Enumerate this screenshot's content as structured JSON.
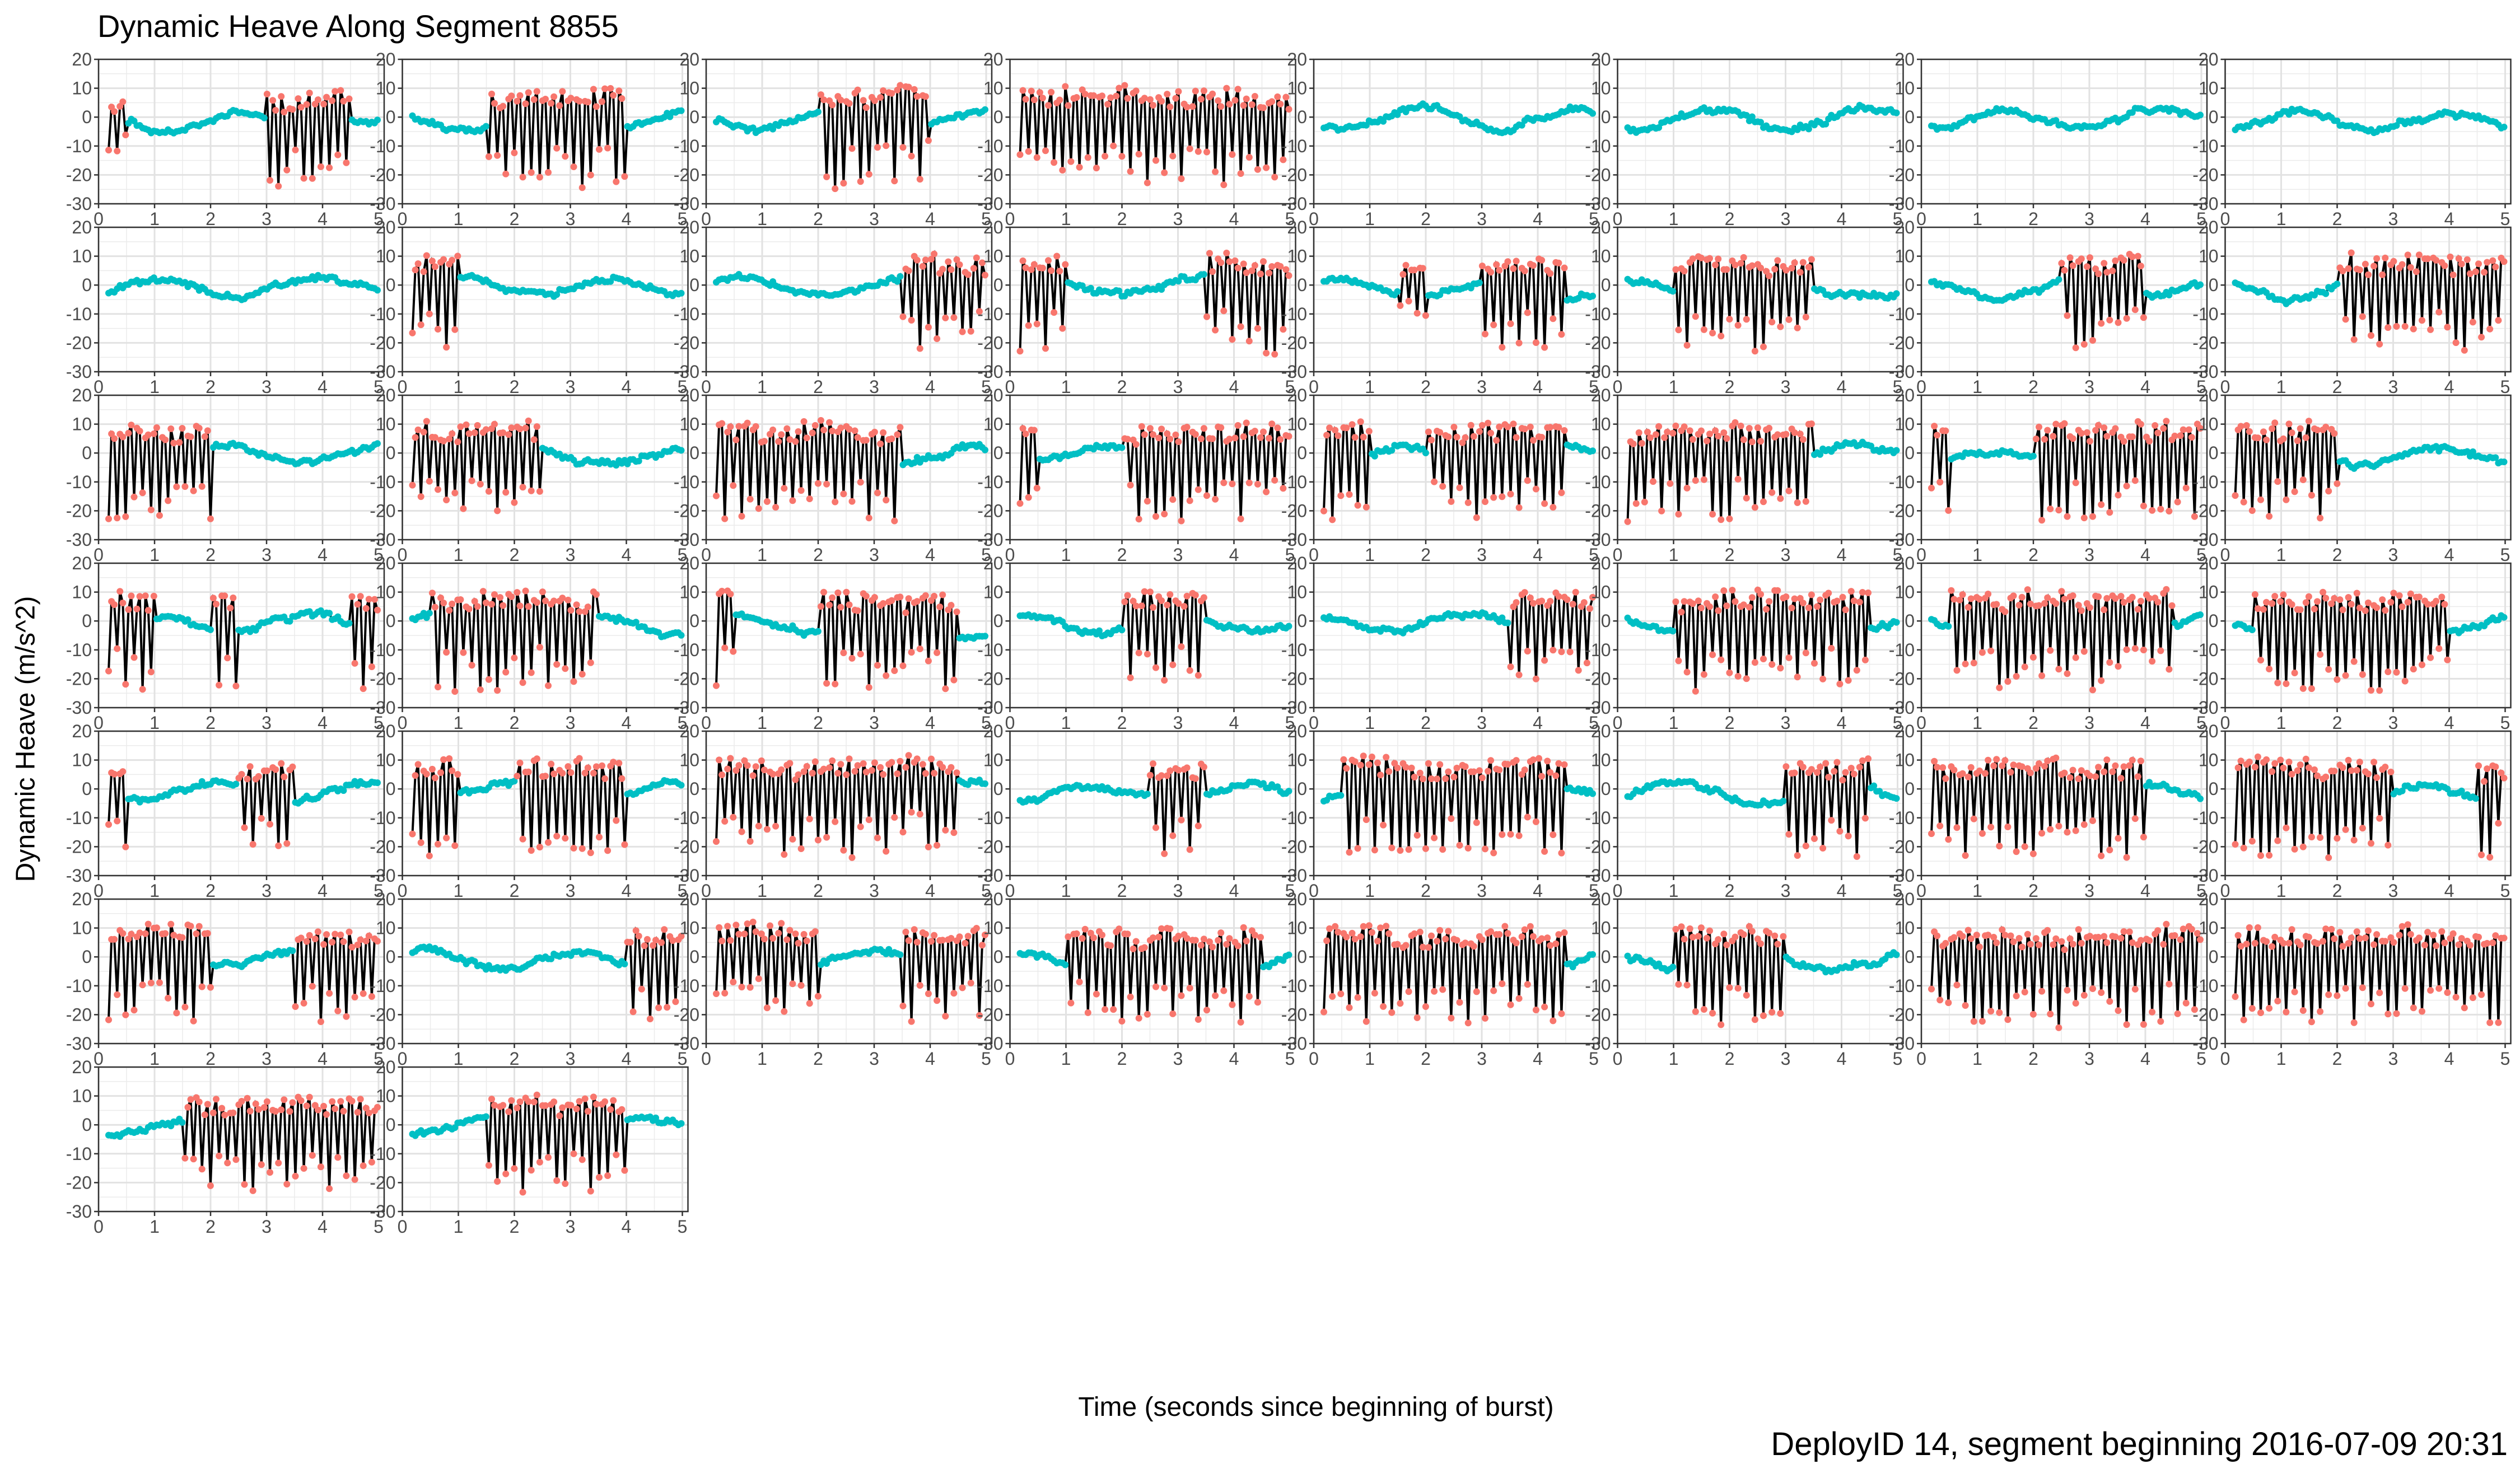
{
  "title": "Dynamic Heave Along Segment 8855",
  "caption": "DeployID 14, segment beginning 2016-07-09 20:31",
  "chart_data": {
    "type": "line",
    "layout": "small multiples, 8 columns, 50 panels",
    "panel_count": 50,
    "xlabel": "Time (seconds since beginning of burst)",
    "ylabel": "Dynamic Heave (m/s^2)",
    "xlim": [
      0,
      5.1
    ],
    "ylim": [
      -30,
      20
    ],
    "x_ticks": [
      0,
      1,
      2,
      3,
      4,
      5
    ],
    "y_ticks": [
      20,
      10,
      0,
      -10,
      -20,
      -30
    ],
    "grid": true,
    "legend": "none",
    "colors": {
      "line": "#000000",
      "high_activity_points": "#F8766D",
      "low_activity_points": "#00BFC4",
      "panel_border": "#333333",
      "grid": "#EBEBEB"
    },
    "panels_activity": [
      [
        0.55,
        0.0,
        0.0,
        0.0,
        0.0,
        0.0,
        0.9,
        0.9,
        0.75,
        0.0
      ],
      [
        0.0,
        0.0,
        0.0,
        0.95,
        0.95,
        0.95,
        0.95,
        0.95,
        0.2,
        0.0
      ],
      [
        0.3,
        0.0,
        0.0,
        0.0,
        0.95,
        0.95,
        0.95,
        0.95,
        0.0,
        0.0
      ],
      [
        0.95,
        0.95,
        0.95,
        0.95,
        0.95,
        0.95,
        0.95,
        0.95,
        0.95,
        0.95
      ],
      [
        0.0,
        0.0,
        0.0,
        0.0,
        0.0,
        0.0,
        0.0,
        0.0,
        0.0,
        0.0
      ],
      [
        0.0,
        0.0,
        0.0,
        0.0,
        0.0,
        0.0,
        0.0,
        0.0,
        0.0,
        0.0
      ],
      [
        0.0,
        0.0,
        0.0,
        0.0,
        0.0,
        0.0,
        0.0,
        0.0,
        0.0,
        0.0
      ],
      [
        0.0,
        0.0,
        0.0,
        0.0,
        0.0,
        0.0,
        0.0,
        0.0,
        0.0,
        0.0
      ],
      [
        0.0,
        0.0,
        0.0,
        0.0,
        0.0,
        0.0,
        0.0,
        0.0,
        0.0,
        0.0
      ],
      [
        0.95,
        0.95,
        0.0,
        0.0,
        0.0,
        0.0,
        0.0,
        0.0,
        0.0,
        0.0
      ],
      [
        0.0,
        0.0,
        0.0,
        0.0,
        0.0,
        0.0,
        0.0,
        0.9,
        0.9,
        0.9
      ],
      [
        0.95,
        0.95,
        0.0,
        0.0,
        0.0,
        0.0,
        0.0,
        0.95,
        0.95,
        0.95
      ],
      [
        0.0,
        0.0,
        0.0,
        0.55,
        0.0,
        0.0,
        0.9,
        0.9,
        0.9,
        0.0
      ],
      [
        0.0,
        0.0,
        0.95,
        0.95,
        0.95,
        0.95,
        0.95,
        0.0,
        0.0,
        0.0
      ],
      [
        0.0,
        0.0,
        0.0,
        0.0,
        0.0,
        0.9,
        0.9,
        0.9,
        0.0,
        0.0
      ],
      [
        0.0,
        0.0,
        0.0,
        0.0,
        0.95,
        0.95,
        0.95,
        0.95,
        0.95,
        0.9
      ],
      [
        0.95,
        0.95,
        0.95,
        0.95,
        0.0,
        0.0,
        0.0,
        0.0,
        0.0,
        0.0
      ],
      [
        0.95,
        0.95,
        0.95,
        0.95,
        0.95,
        0.2,
        0.0,
        0.0,
        0.0,
        0.0
      ],
      [
        0.95,
        0.95,
        0.95,
        0.95,
        0.95,
        0.95,
        0.95,
        0.3,
        0.0,
        0.0
      ],
      [
        0.95,
        0.0,
        0.0,
        0.0,
        0.95,
        0.95,
        0.95,
        0.95,
        0.95,
        0.95
      ],
      [
        0.95,
        0.95,
        0.0,
        0.0,
        0.95,
        0.95,
        0.95,
        0.95,
        0.95,
        0.0
      ],
      [
        0.95,
        0.95,
        0.95,
        0.95,
        0.95,
        0.95,
        0.95,
        0.0,
        0.0,
        0.0
      ],
      [
        0.95,
        0.0,
        0.0,
        0.0,
        0.95,
        0.95,
        0.95,
        0.95,
        0.95,
        0.95
      ],
      [
        0.95,
        0.95,
        0.95,
        0.95,
        0.0,
        0.0,
        0.0,
        0.0,
        0.0,
        0.0
      ],
      [
        0.95,
        0.95,
        0.0,
        0.0,
        0.95,
        0.0,
        0.0,
        0.0,
        0.0,
        0.95
      ],
      [
        0.0,
        0.95,
        0.95,
        0.95,
        0.95,
        0.95,
        0.95,
        0.0,
        0.0,
        0.3
      ],
      [
        0.9,
        0.0,
        0.0,
        0.0,
        0.95,
        0.95,
        0.95,
        0.95,
        0.95,
        0.0
      ],
      [
        0.0,
        0.0,
        0.0,
        0.0,
        0.9,
        0.9,
        0.9,
        0.0,
        0.0,
        0.0
      ],
      [
        0.0,
        0.0,
        0.0,
        0.0,
        0.0,
        0.0,
        0.0,
        0.95,
        0.95,
        0.95
      ],
      [
        0.0,
        0.0,
        0.95,
        0.95,
        0.95,
        0.95,
        0.95,
        0.95,
        0.95,
        0.0
      ],
      [
        0.0,
        0.95,
        0.95,
        0.95,
        0.95,
        0.95,
        0.95,
        0.95,
        0.95,
        0.0
      ],
      [
        0.0,
        0.95,
        0.95,
        0.95,
        0.95,
        0.95,
        0.95,
        0.95,
        0.0,
        0.0
      ],
      [
        0.9,
        0.0,
        0.0,
        0.0,
        0.0,
        0.9,
        0.9,
        0.0,
        0.0,
        0.3
      ],
      [
        0.95,
        0.95,
        0.0,
        0.0,
        0.95,
        0.95,
        0.95,
        0.95,
        0.0,
        0.0
      ],
      [
        0.95,
        0.95,
        0.95,
        0.95,
        0.95,
        0.95,
        0.95,
        0.95,
        0.95,
        0.0
      ],
      [
        0.0,
        0.0,
        0.0,
        0.0,
        0.0,
        0.9,
        0.9,
        0.0,
        0.0,
        0.0
      ],
      [
        0.0,
        0.95,
        0.95,
        0.95,
        0.95,
        0.95,
        0.95,
        0.95,
        0.95,
        0.0
      ],
      [
        0.0,
        0.0,
        0.0,
        0.0,
        0.0,
        0.0,
        0.95,
        0.95,
        0.95,
        0.0
      ],
      [
        0.95,
        0.95,
        0.95,
        0.95,
        0.95,
        0.95,
        0.95,
        0.95,
        0.0,
        0.0
      ],
      [
        0.95,
        0.95,
        0.95,
        0.95,
        0.95,
        0.95,
        0.0,
        0.0,
        0.0,
        0.95
      ],
      [
        0.95,
        0.95,
        0.95,
        0.95,
        0.0,
        0.0,
        0.0,
        0.95,
        0.95,
        0.95
      ],
      [
        0.0,
        0.0,
        0.0,
        0.0,
        0.0,
        0.0,
        0.0,
        0.0,
        0.9,
        0.9
      ],
      [
        0.95,
        0.95,
        0.95,
        0.95,
        0.0,
        0.0,
        0.0,
        0.95,
        0.95,
        0.95
      ],
      [
        0.0,
        0.0,
        0.95,
        0.95,
        0.95,
        0.95,
        0.95,
        0.95,
        0.95,
        0.0
      ],
      [
        0.95,
        0.95,
        0.95,
        0.95,
        0.95,
        0.95,
        0.95,
        0.95,
        0.95,
        0.0
      ],
      [
        0.0,
        0.0,
        0.95,
        0.95,
        0.95,
        0.95,
        0.0,
        0.0,
        0.0,
        0.0
      ],
      [
        0.95,
        0.95,
        0.95,
        0.95,
        0.95,
        0.95,
        0.95,
        0.95,
        0.95,
        0.95
      ],
      [
        0.95,
        0.95,
        0.95,
        0.95,
        0.95,
        0.95,
        0.95,
        0.95,
        0.95,
        0.95
      ],
      [
        0.0,
        0.0,
        0.0,
        0.95,
        0.95,
        0.95,
        0.95,
        0.95,
        0.95,
        0.95
      ],
      [
        0.0,
        0.0,
        0.0,
        0.95,
        0.95,
        0.95,
        0.95,
        0.95,
        0.0,
        0.0
      ]
    ]
  }
}
